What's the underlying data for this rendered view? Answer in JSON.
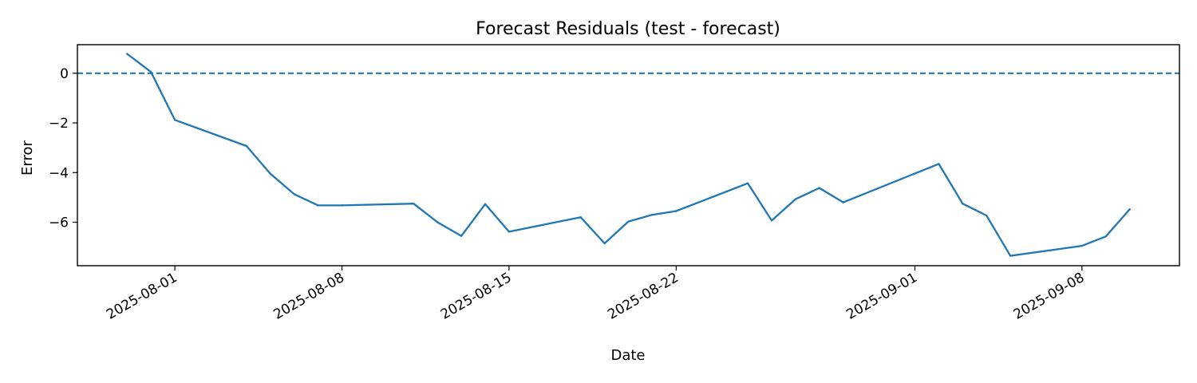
{
  "chart_data": {
    "type": "line",
    "title": "Forecast Residuals (test - forecast)",
    "xlabel": "Date",
    "ylabel": "Error",
    "xlim": [
      "2025-07-27 22:00",
      "2025-09-12 02:00"
    ],
    "ylim": [
      -7.75,
      1.15
    ],
    "x_ticks": [
      "2025-08-01",
      "2025-08-08",
      "2025-08-15",
      "2025-08-22",
      "2025-09-01",
      "2025-09-08"
    ],
    "y_ticks": [
      0,
      -2,
      -4,
      -6
    ],
    "y_tick_labels": [
      "0",
      "−2",
      "−4",
      "−6"
    ],
    "grid": false,
    "reference_line": {
      "y": 0,
      "style": "dashed"
    },
    "colors": {
      "series": "#1f77b4",
      "reference": "#1f77b4",
      "axes": "#000000"
    },
    "series": [
      {
        "x": [
          "2025-07-30",
          "2025-07-31",
          "2025-08-01",
          "2025-08-04",
          "2025-08-05",
          "2025-08-06",
          "2025-08-07",
          "2025-08-08",
          "2025-08-11",
          "2025-08-12",
          "2025-08-13",
          "2025-08-14",
          "2025-08-15",
          "2025-08-18",
          "2025-08-19",
          "2025-08-20",
          "2025-08-21",
          "2025-08-22",
          "2025-08-25",
          "2025-08-26",
          "2025-08-27",
          "2025-08-28",
          "2025-08-29",
          "2025-09-02",
          "2025-09-03",
          "2025-09-04",
          "2025-09-05",
          "2025-09-08",
          "2025-09-09",
          "2025-09-10"
        ],
        "values": [
          0.78,
          0.05,
          -1.88,
          -2.93,
          -4.05,
          -4.87,
          -5.32,
          -5.32,
          -5.25,
          -6.0,
          -6.55,
          -5.27,
          -6.38,
          -5.8,
          -6.85,
          -5.97,
          -5.7,
          -5.55,
          -4.43,
          -5.93,
          -5.07,
          -4.62,
          -5.2,
          -3.65,
          -5.25,
          -5.73,
          -7.35,
          -6.95,
          -6.57,
          -5.48
        ]
      }
    ]
  }
}
